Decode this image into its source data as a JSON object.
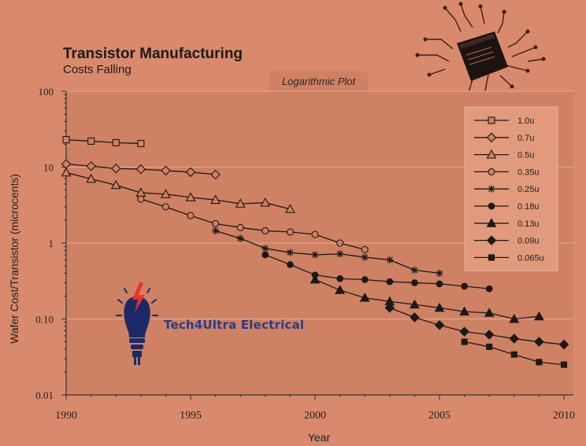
{
  "header": {
    "title": "Transistor Manufacturing",
    "subtitle": "Costs Falling",
    "plot_tab": "Logarithmic Plot"
  },
  "branding": {
    "name": "Tech4Ultra Electrical",
    "color": "#233f8f"
  },
  "colors": {
    "background": "#d98a6c",
    "plot_area": "#cf8163",
    "legend_box": "#e29a7c",
    "series": "#1a1a1a"
  },
  "chart_data": {
    "type": "line",
    "title": "Transistor Manufacturing",
    "subtitle": "Costs Falling",
    "xlabel": "Year",
    "ylabel": "Wafer Cost/Transistor (microcents)",
    "xlim": [
      1990,
      2010
    ],
    "ylim": [
      0.01,
      100
    ],
    "yscale": "log",
    "x_ticks": [
      "1990",
      "1995",
      "2000",
      "2005",
      "2010"
    ],
    "y_ticks": [
      "0.01",
      "0.10",
      "1",
      "10",
      "100"
    ],
    "grid": "horizontal",
    "legend_position": "top-right",
    "series": [
      {
        "name": "1.0u",
        "marker": "square-open",
        "points": [
          [
            1990,
            23
          ],
          [
            1991,
            22
          ],
          [
            1992,
            21
          ],
          [
            1993,
            20.5
          ]
        ]
      },
      {
        "name": "0.7u",
        "marker": "diamond-open",
        "points": [
          [
            1990,
            11
          ],
          [
            1991,
            10.3
          ],
          [
            1992,
            9.6
          ],
          [
            1993,
            9.4
          ],
          [
            1994,
            9
          ],
          [
            1995,
            8.6
          ],
          [
            1996,
            8
          ]
        ]
      },
      {
        "name": "0.5u",
        "marker": "triangle-open",
        "points": [
          [
            1990,
            8.5
          ],
          [
            1991,
            7
          ],
          [
            1992,
            5.8
          ],
          [
            1993,
            4.6
          ],
          [
            1994,
            4.4
          ],
          [
            1995,
            4
          ],
          [
            1996,
            3.7
          ],
          [
            1997,
            3.3
          ],
          [
            1998,
            3.4
          ],
          [
            1999,
            2.8
          ]
        ]
      },
      {
        "name": "0.35u",
        "marker": "circle-open",
        "points": [
          [
            1993,
            3.8
          ],
          [
            1994,
            3
          ],
          [
            1995,
            2.3
          ],
          [
            1996,
            1.8
          ],
          [
            1997,
            1.6
          ],
          [
            1998,
            1.45
          ],
          [
            1999,
            1.4
          ],
          [
            2000,
            1.3
          ],
          [
            2001,
            1
          ],
          [
            2002,
            0.82
          ]
        ]
      },
      {
        "name": "0.25u",
        "marker": "star",
        "points": [
          [
            1996,
            1.45
          ],
          [
            1997,
            1.15
          ],
          [
            1998,
            0.85
          ],
          [
            1999,
            0.75
          ],
          [
            2000,
            0.7
          ],
          [
            2001,
            0.72
          ],
          [
            2002,
            0.65
          ],
          [
            2003,
            0.6
          ],
          [
            2004,
            0.44
          ],
          [
            2005,
            0.4
          ]
        ]
      },
      {
        "name": "0.18u",
        "marker": "circle-filled",
        "points": [
          [
            1998,
            0.7
          ],
          [
            1999,
            0.52
          ],
          [
            2000,
            0.38
          ],
          [
            2001,
            0.34
          ],
          [
            2002,
            0.33
          ],
          [
            2003,
            0.31
          ],
          [
            2004,
            0.3
          ],
          [
            2005,
            0.29
          ],
          [
            2006,
            0.27
          ],
          [
            2007,
            0.25
          ]
        ]
      },
      {
        "name": "0.13u",
        "marker": "triangle-filled",
        "points": [
          [
            2000,
            0.33
          ],
          [
            2001,
            0.24
          ],
          [
            2002,
            0.19
          ],
          [
            2003,
            0.17
          ],
          [
            2004,
            0.155
          ],
          [
            2005,
            0.14
          ],
          [
            2006,
            0.125
          ],
          [
            2007,
            0.12
          ],
          [
            2008,
            0.1
          ],
          [
            2009,
            0.108
          ]
        ]
      },
      {
        "name": "0.09u",
        "marker": "diamond-filled",
        "points": [
          [
            2003,
            0.14
          ],
          [
            2004,
            0.105
          ],
          [
            2005,
            0.083
          ],
          [
            2006,
            0.068
          ],
          [
            2007,
            0.062
          ],
          [
            2008,
            0.055
          ],
          [
            2009,
            0.05
          ],
          [
            2010,
            0.046
          ]
        ]
      },
      {
        "name": "0.065u",
        "marker": "square-filled",
        "points": [
          [
            2006,
            0.05
          ],
          [
            2007,
            0.043
          ],
          [
            2008,
            0.034
          ],
          [
            2009,
            0.027
          ],
          [
            2010,
            0.025
          ]
        ]
      }
    ]
  }
}
